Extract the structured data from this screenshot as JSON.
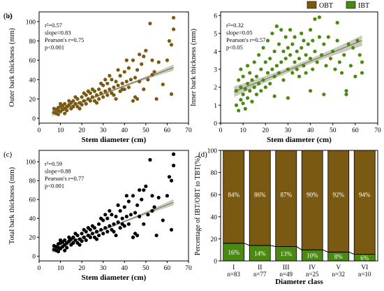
{
  "colors": {
    "obt": "#7a5a12",
    "ibt": "#4a8a12",
    "black": "#000000",
    "band": "#b9b9a4"
  },
  "legend": {
    "obt": "OBT",
    "ibt": "IBT"
  },
  "chart_data": [
    {
      "id": "a",
      "type": "scatter",
      "label": "(a)",
      "xlabel": "Stem diameter (cm)",
      "ylabel": "Outer bark thickness (mm)",
      "xlim": [
        0,
        70
      ],
      "ylim": [
        -5,
        110
      ],
      "xticks": [
        0,
        10,
        20,
        30,
        40,
        50,
        60,
        70
      ],
      "yticks": [
        0,
        20,
        40,
        60,
        80,
        100
      ],
      "color_key": "obt",
      "stats": {
        "r2": "r²=0.57",
        "slope": "slope=0.83",
        "pearson": "Pearson's r=0.75",
        "p": "p<0.001"
      },
      "fit": {
        "x0": 6,
        "x1": 63,
        "slope": 0.83,
        "intercept": 0.2,
        "band": [
          1.0,
          3.2
        ]
      },
      "points": [
        [
          7,
          6
        ],
        [
          7,
          10
        ],
        [
          8,
          5
        ],
        [
          8,
          9
        ],
        [
          9,
          4
        ],
        [
          9,
          8
        ],
        [
          9,
          11
        ],
        [
          10,
          7
        ],
        [
          10,
          12
        ],
        [
          11,
          9
        ],
        [
          11,
          13
        ],
        [
          12,
          5
        ],
        [
          12,
          10
        ],
        [
          12,
          15
        ],
        [
          13,
          8
        ],
        [
          13,
          12
        ],
        [
          14,
          14
        ],
        [
          15,
          10
        ],
        [
          15,
          16
        ],
        [
          16,
          12
        ],
        [
          16,
          18
        ],
        [
          17,
          15
        ],
        [
          18,
          12
        ],
        [
          18,
          20
        ],
        [
          19,
          16
        ],
        [
          20,
          14
        ],
        [
          20,
          22
        ],
        [
          21,
          18
        ],
        [
          22,
          15
        ],
        [
          22,
          24
        ],
        [
          23,
          20
        ],
        [
          24,
          18
        ],
        [
          24,
          26
        ],
        [
          25,
          22
        ],
        [
          26,
          18
        ],
        [
          26,
          28
        ],
        [
          27,
          24
        ],
        [
          28,
          20
        ],
        [
          28,
          30
        ],
        [
          29,
          26
        ],
        [
          30,
          22
        ],
        [
          30,
          34
        ],
        [
          31,
          28
        ],
        [
          32,
          24
        ],
        [
          32,
          36
        ],
        [
          33,
          30
        ],
        [
          34,
          26
        ],
        [
          34,
          40
        ],
        [
          35,
          32
        ],
        [
          36,
          20
        ],
        [
          36,
          38
        ],
        [
          37,
          34
        ],
        [
          38,
          28
        ],
        [
          38,
          44
        ],
        [
          39,
          36
        ],
        [
          40,
          30
        ],
        [
          40,
          48
        ],
        [
          41,
          38
        ],
        [
          42,
          32
        ],
        [
          42,
          52
        ],
        [
          43,
          40
        ],
        [
          44,
          18
        ],
        [
          44,
          60
        ],
        [
          45,
          42
        ],
        [
          46,
          20
        ],
        [
          46,
          50
        ],
        [
          47,
          38
        ],
        [
          48,
          56
        ],
        [
          49,
          30
        ],
        [
          50,
          70
        ],
        [
          51,
          40
        ],
        [
          52,
          98
        ],
        [
          53,
          60
        ],
        [
          54,
          48
        ],
        [
          55,
          20
        ],
        [
          56,
          58
        ],
        [
          58,
          35
        ],
        [
          60,
          60
        ],
        [
          61,
          80
        ],
        [
          62,
          76
        ],
        [
          63,
          104
        ],
        [
          63,
          92
        ],
        [
          62,
          25
        ],
        [
          10,
          15
        ],
        [
          14,
          18
        ],
        [
          17,
          22
        ],
        [
          21,
          26
        ],
        [
          25,
          30
        ],
        [
          29,
          36
        ],
        [
          33,
          44
        ],
        [
          37,
          50
        ],
        [
          41,
          60
        ],
        [
          45,
          22
        ],
        [
          49,
          64
        ],
        [
          35,
          24
        ],
        [
          27,
          16
        ],
        [
          19,
          10
        ],
        [
          23,
          28
        ],
        [
          31,
          40
        ],
        [
          39,
          30
        ],
        [
          47,
          66
        ],
        [
          53,
          45
        ]
      ]
    },
    {
      "id": "b",
      "type": "scatter",
      "label": "(b)",
      "xlabel": "Stem diameter (cm)",
      "ylabel": "Inner bark thickness (mm)",
      "xlim": [
        0,
        70
      ],
      "ylim": [
        0,
        6.2
      ],
      "xticks": [
        0,
        10,
        20,
        30,
        40,
        50,
        60,
        70
      ],
      "yticks": [
        0,
        1,
        2,
        3,
        4,
        5,
        6
      ],
      "color_key": "ibt",
      "stats": {
        "r2": "r²=0.32",
        "slope": "slope=0.05",
        "pearson": "Pearson's r=0.57",
        "p": "p<0.05"
      },
      "fit": {
        "x0": 6,
        "x1": 63,
        "slope": 0.05,
        "intercept": 1.45,
        "band": [
          0.14,
          0.3
        ]
      },
      "points": [
        [
          7,
          1.0
        ],
        [
          7,
          1.8
        ],
        [
          8,
          0.7
        ],
        [
          8,
          2.4
        ],
        [
          9,
          1.3
        ],
        [
          9,
          2.0
        ],
        [
          9,
          3.0
        ],
        [
          10,
          1.1
        ],
        [
          10,
          1.6
        ],
        [
          10,
          2.6
        ],
        [
          11,
          0.8
        ],
        [
          11,
          1.9
        ],
        [
          12,
          1.4
        ],
        [
          12,
          2.2
        ],
        [
          12,
          3.2
        ],
        [
          13,
          1.8
        ],
        [
          13,
          2.8
        ],
        [
          14,
          1.2
        ],
        [
          14,
          2.4
        ],
        [
          15,
          2.0
        ],
        [
          15,
          3.4
        ],
        [
          16,
          1.6
        ],
        [
          16,
          2.6
        ],
        [
          17,
          2.2
        ],
        [
          17,
          3.8
        ],
        [
          18,
          1.8
        ],
        [
          18,
          3.0
        ],
        [
          19,
          2.4
        ],
        [
          19,
          4.2
        ],
        [
          20,
          2.0
        ],
        [
          20,
          3.4
        ],
        [
          21,
          2.8
        ],
        [
          21,
          4.6
        ],
        [
          22,
          2.2
        ],
        [
          22,
          3.6
        ],
        [
          23,
          3.0
        ],
        [
          23,
          5.0
        ],
        [
          24,
          2.6
        ],
        [
          24,
          4.0
        ],
        [
          25,
          3.2
        ],
        [
          25,
          5.4
        ],
        [
          26,
          2.8
        ],
        [
          26,
          4.4
        ],
        [
          27,
          3.4
        ],
        [
          27,
          5.2
        ],
        [
          28,
          2.4
        ],
        [
          28,
          4.0
        ],
        [
          29,
          3.6
        ],
        [
          29,
          4.8
        ],
        [
          30,
          3.0
        ],
        [
          30,
          4.2
        ],
        [
          31,
          3.8
        ],
        [
          31,
          5.2
        ],
        [
          32,
          2.8
        ],
        [
          32,
          4.4
        ],
        [
          33,
          3.4
        ],
        [
          33,
          4.8
        ],
        [
          34,
          3.0
        ],
        [
          34,
          4.0
        ],
        [
          35,
          2.6
        ],
        [
          35,
          3.6
        ],
        [
          36,
          4.2
        ],
        [
          36,
          5.0
        ],
        [
          37,
          3.2
        ],
        [
          37,
          4.6
        ],
        [
          38,
          2.8
        ],
        [
          38,
          3.8
        ],
        [
          39,
          4.4
        ],
        [
          40,
          3.6
        ],
        [
          40,
          5.2
        ],
        [
          41,
          3.0
        ],
        [
          41,
          4.6
        ],
        [
          42,
          4.0
        ],
        [
          42,
          5.8
        ],
        [
          43,
          3.4
        ],
        [
          44,
          4.8
        ],
        [
          44,
          5.9
        ],
        [
          45,
          3.8
        ],
        [
          46,
          4.4
        ],
        [
          46,
          1.6
        ],
        [
          47,
          3.2
        ],
        [
          48,
          4.8
        ],
        [
          49,
          3.6
        ],
        [
          50,
          4.0
        ],
        [
          51,
          3.0
        ],
        [
          52,
          4.6
        ],
        [
          52,
          5.6
        ],
        [
          53,
          3.4
        ],
        [
          54,
          2.8
        ],
        [
          55,
          3.8
        ],
        [
          56,
          1.8
        ],
        [
          57,
          4.4
        ],
        [
          58,
          3.2
        ],
        [
          59,
          4.2
        ],
        [
          60,
          2.6
        ],
        [
          61,
          4.6
        ],
        [
          62,
          3.8
        ],
        [
          63,
          2.8
        ],
        [
          63,
          3.4
        ],
        [
          56,
          1.6
        ],
        [
          40,
          1.8
        ],
        [
          30,
          1.4
        ],
        [
          24,
          1.5
        ]
      ]
    },
    {
      "id": "c",
      "type": "scatter",
      "label": "(c)",
      "xlabel": "Stem diameter (cm)",
      "ylabel": "Total bark thickness (mm)",
      "xlim": [
        0,
        70
      ],
      "ylim": [
        -5,
        112
      ],
      "xticks": [
        0,
        10,
        20,
        30,
        40,
        50,
        60,
        70
      ],
      "yticks": [
        0,
        20,
        40,
        60,
        80,
        100
      ],
      "color_key": "black",
      "stats": {
        "r2": "r²=0.59",
        "slope": "slope=0.88",
        "pearson": "Pearson's r=0.77",
        "p": "p<0.001"
      },
      "fit": {
        "x0": 6,
        "x1": 63,
        "slope": 0.88,
        "intercept": 1.6,
        "band": [
          1.0,
          3.3
        ]
      },
      "points": [
        [
          7,
          7
        ],
        [
          7,
          11
        ],
        [
          8,
          6
        ],
        [
          8,
          10
        ],
        [
          9,
          5
        ],
        [
          9,
          9
        ],
        [
          9,
          13
        ],
        [
          10,
          8
        ],
        [
          10,
          14
        ],
        [
          11,
          10
        ],
        [
          11,
          15
        ],
        [
          12,
          6
        ],
        [
          12,
          12
        ],
        [
          12,
          17
        ],
        [
          13,
          9
        ],
        [
          13,
          14
        ],
        [
          14,
          16
        ],
        [
          15,
          12
        ],
        [
          15,
          18
        ],
        [
          16,
          14
        ],
        [
          16,
          20
        ],
        [
          17,
          17
        ],
        [
          18,
          14
        ],
        [
          18,
          22
        ],
        [
          19,
          18
        ],
        [
          20,
          16
        ],
        [
          20,
          24
        ],
        [
          21,
          20
        ],
        [
          22,
          17
        ],
        [
          22,
          26
        ],
        [
          23,
          22
        ],
        [
          24,
          20
        ],
        [
          24,
          28
        ],
        [
          25,
          24
        ],
        [
          26,
          20
        ],
        [
          26,
          30
        ],
        [
          27,
          26
        ],
        [
          28,
          22
        ],
        [
          28,
          34
        ],
        [
          29,
          28
        ],
        [
          30,
          24
        ],
        [
          30,
          38
        ],
        [
          31,
          30
        ],
        [
          32,
          26
        ],
        [
          32,
          40
        ],
        [
          33,
          32
        ],
        [
          34,
          28
        ],
        [
          34,
          44
        ],
        [
          35,
          34
        ],
        [
          36,
          22
        ],
        [
          36,
          42
        ],
        [
          37,
          36
        ],
        [
          38,
          30
        ],
        [
          38,
          48
        ],
        [
          39,
          40
        ],
        [
          40,
          32
        ],
        [
          40,
          52
        ],
        [
          41,
          42
        ],
        [
          42,
          34
        ],
        [
          42,
          58
        ],
        [
          43,
          44
        ],
        [
          44,
          20
        ],
        [
          44,
          64
        ],
        [
          45,
          46
        ],
        [
          46,
          22
        ],
        [
          46,
          54
        ],
        [
          47,
          42
        ],
        [
          48,
          60
        ],
        [
          49,
          34
        ],
        [
          50,
          74
        ],
        [
          51,
          44
        ],
        [
          52,
          102
        ],
        [
          53,
          64
        ],
        [
          54,
          52
        ],
        [
          55,
          22
        ],
        [
          56,
          62
        ],
        [
          58,
          38
        ],
        [
          60,
          64
        ],
        [
          61,
          84
        ],
        [
          62,
          80
        ],
        [
          63,
          108
        ],
        [
          63,
          96
        ],
        [
          62,
          28
        ],
        [
          10,
          17
        ],
        [
          14,
          20
        ],
        [
          17,
          24
        ],
        [
          21,
          28
        ],
        [
          25,
          32
        ],
        [
          29,
          40
        ],
        [
          33,
          48
        ],
        [
          37,
          54
        ],
        [
          41,
          64
        ],
        [
          45,
          24
        ],
        [
          49,
          70
        ],
        [
          35,
          26
        ],
        [
          27,
          18
        ],
        [
          19,
          12
        ],
        [
          23,
          30
        ],
        [
          31,
          44
        ],
        [
          39,
          34
        ],
        [
          47,
          70
        ],
        [
          53,
          48
        ]
      ]
    },
    {
      "id": "d",
      "type": "bar",
      "label": "(d)",
      "xlabel": "Diameter class",
      "ylabel": "Percentage of IBT/OBT to TBT(%)",
      "ylim": [
        0,
        100
      ],
      "yticks": [
        0,
        20,
        40,
        60,
        80,
        100
      ],
      "categories": [
        "I",
        "II",
        "III",
        "IV",
        "V",
        "VI"
      ],
      "counts": [
        "n=83",
        "n=77",
        "n=49",
        "n=25",
        "n=32",
        "n=10"
      ],
      "series": [
        {
          "name": "IBT",
          "color_key": "ibt",
          "values": [
            16,
            14,
            13,
            10,
            8,
            6
          ],
          "labels": [
            "16%",
            "14%",
            "13%",
            "10%",
            "8%",
            "6%"
          ]
        },
        {
          "name": "OBT",
          "color_key": "obt",
          "values": [
            84,
            86,
            87,
            90,
            92,
            94
          ],
          "labels": [
            "84%",
            "86%",
            "87%",
            "90%",
            "92%",
            "94%"
          ]
        }
      ]
    }
  ]
}
